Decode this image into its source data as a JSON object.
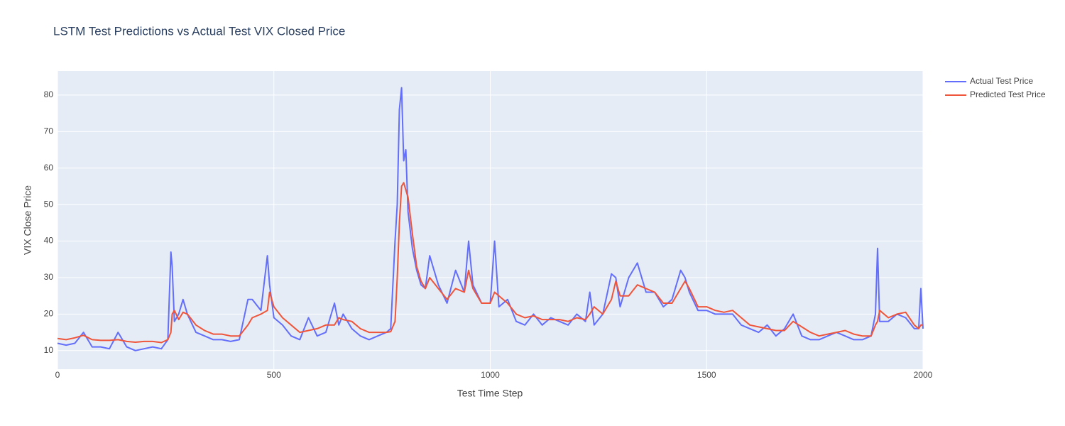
{
  "chart_data": {
    "type": "line",
    "title": "LSTM Test Predictions vs Actual Test VIX Closed Price",
    "x_label": "Test Time Step",
    "y_label": "VIX Close Price",
    "legend": "top-right",
    "grid": true,
    "xlim": [
      0,
      2000
    ],
    "xticks": [
      0,
      500,
      1000,
      1500,
      2000
    ],
    "ylim": [
      4.9,
      86.6
    ],
    "yticks": [
      10,
      20,
      30,
      40,
      50,
      60,
      70,
      80
    ],
    "x": [
      0,
      20,
      40,
      60,
      80,
      100,
      120,
      140,
      160,
      180,
      200,
      220,
      240,
      255,
      262,
      265,
      270,
      280,
      290,
      300,
      320,
      340,
      360,
      380,
      400,
      420,
      440,
      450,
      470,
      485,
      490,
      500,
      520,
      540,
      560,
      580,
      600,
      620,
      640,
      650,
      660,
      680,
      700,
      720,
      740,
      760,
      770,
      780,
      785,
      790,
      795,
      800,
      805,
      810,
      820,
      830,
      840,
      850,
      860,
      880,
      900,
      920,
      940,
      950,
      960,
      980,
      1000,
      1010,
      1020,
      1040,
      1060,
      1080,
      1100,
      1120,
      1140,
      1160,
      1180,
      1200,
      1220,
      1230,
      1240,
      1260,
      1280,
      1290,
      1300,
      1320,
      1340,
      1360,
      1380,
      1400,
      1420,
      1440,
      1450,
      1460,
      1480,
      1500,
      1520,
      1540,
      1560,
      1580,
      1600,
      1620,
      1640,
      1660,
      1680,
      1700,
      1720,
      1740,
      1760,
      1780,
      1800,
      1820,
      1840,
      1860,
      1880,
      1890,
      1895,
      1900,
      1920,
      1940,
      1960,
      1980,
      1990,
      1995,
      2000
    ],
    "series": [
      {
        "name": "Actual Test Price",
        "color": "#636efa",
        "values": [
          12,
          11.5,
          12,
          15,
          11,
          11,
          10.5,
          15,
          11,
          10,
          10.5,
          11,
          10.5,
          13,
          37,
          33,
          18,
          20,
          24,
          20,
          15,
          14,
          13,
          13,
          12.5,
          13,
          24,
          24,
          21,
          36,
          28,
          19,
          17,
          14,
          13,
          19,
          14,
          15,
          23,
          17,
          20,
          16,
          14,
          13,
          14,
          15,
          16,
          40,
          50,
          76,
          82,
          62,
          65,
          48,
          38,
          32,
          28,
          27,
          36,
          28,
          23,
          32,
          26,
          40,
          28,
          23,
          23,
          40,
          22,
          24,
          18,
          17,
          20,
          17,
          19,
          18,
          17,
          20,
          18,
          26,
          17,
          20,
          31,
          30,
          22,
          30,
          34,
          26,
          26,
          22,
          24,
          32,
          30,
          26,
          21,
          21,
          20,
          20,
          20,
          17,
          16,
          15,
          17,
          14,
          16,
          20,
          14,
          13,
          13,
          14,
          15,
          14,
          13,
          13,
          14,
          20,
          38,
          18,
          18,
          20,
          19,
          16,
          16,
          27,
          16
        ]
      },
      {
        "name": "Predicted Test Price",
        "color": "#ef553b",
        "values": [
          13.3,
          13,
          13.5,
          14.2,
          13,
          12.8,
          12.8,
          13,
          12.5,
          12.3,
          12.5,
          12.5,
          12.2,
          13,
          15,
          20,
          21,
          18.5,
          20.5,
          20,
          17,
          15.5,
          14.5,
          14.5,
          14,
          14,
          17,
          19,
          20,
          21,
          26,
          22,
          19,
          17,
          15,
          15.5,
          16,
          17,
          17,
          19,
          18.5,
          18,
          16,
          15,
          15,
          15,
          15.2,
          18,
          30,
          45,
          55,
          56,
          54,
          52,
          42,
          33,
          29,
          27,
          30,
          27,
          24,
          27,
          26,
          32,
          27,
          23,
          23,
          26,
          25,
          23,
          20,
          19,
          19.5,
          18.5,
          18.5,
          18.5,
          18,
          19,
          18.5,
          20,
          22,
          20,
          24,
          29,
          25,
          25,
          28,
          27,
          26,
          23,
          23,
          27,
          29,
          27,
          22,
          22,
          21,
          20.5,
          21,
          19,
          17,
          16.5,
          16,
          15.5,
          15.5,
          18,
          16.5,
          15,
          14,
          14.5,
          15,
          15.5,
          14.5,
          14,
          14,
          17,
          18,
          21,
          19,
          20,
          20.5,
          17,
          16,
          17,
          17
        ]
      }
    ]
  }
}
